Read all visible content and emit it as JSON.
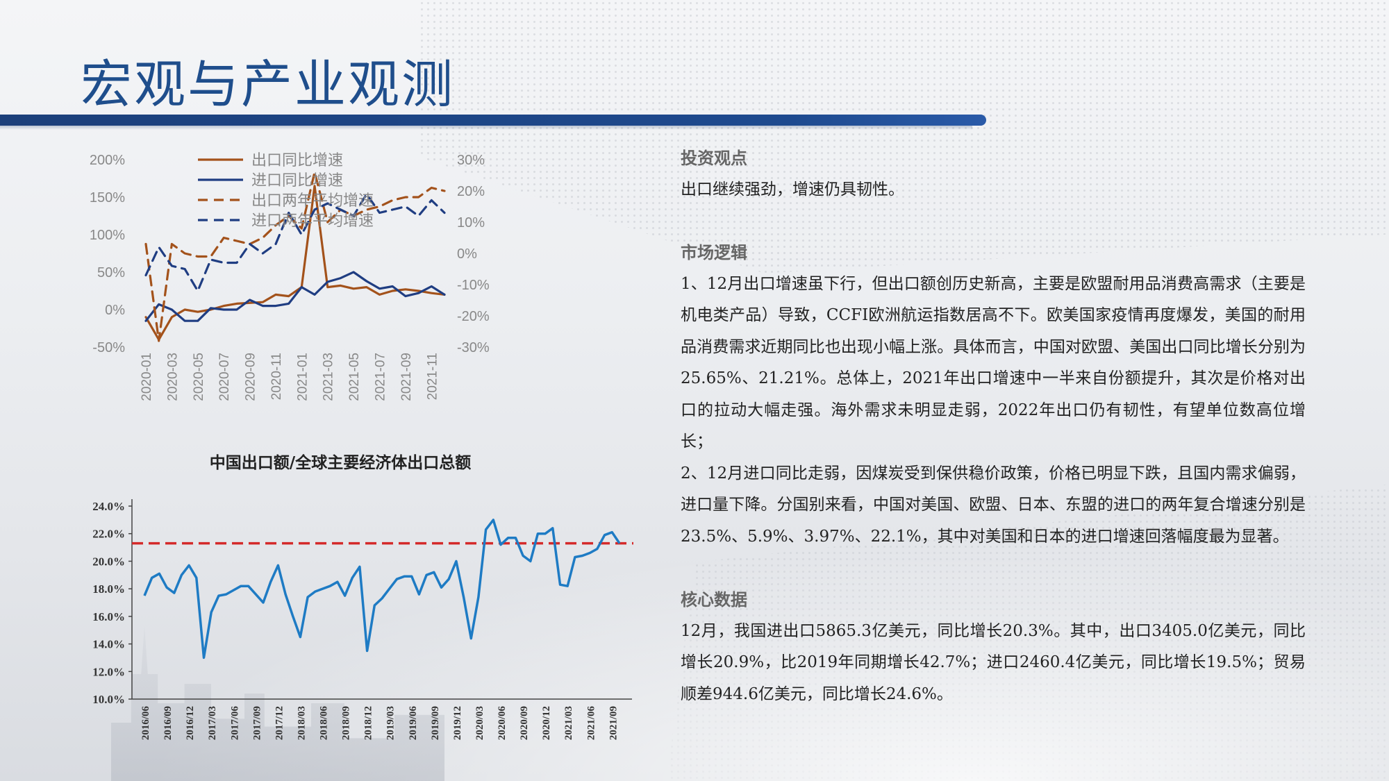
{
  "page": {
    "title": "宏观与产业观测"
  },
  "colors": {
    "title": "#1f4e8c",
    "bar": "#1c3f7a",
    "export": "#a3521b",
    "import": "#1f3d82",
    "share_line": "#1e7bc4",
    "share_ref": "#d42a2a"
  },
  "text_panel": {
    "sections": [
      {
        "heading": "投资观点",
        "paragraphs": [
          "出口继续强劲，增速仍具韧性。"
        ]
      },
      {
        "heading": "市场逻辑",
        "paragraphs": [
          "1、12月出口增速虽下行，但出口额创历史新高，主要是欧盟耐用品消费高需求（主要是机电类产品）导致，CCFI欧洲航运指数居高不下。欧美国家疫情再度爆发，美国的耐用品消费需求近期同比也出现小幅上涨。具体而言，中国对欧盟、美国出口同比增长分别为25.65%、21.21%。总体上，2021年出口增速中一半来自份额提升，其次是价格对出口的拉动大幅走强。海外需求未明显走弱，2022年出口仍有韧性，有望单位数高位增长；",
          "2、12月进口同比走弱，因煤炭受到保供稳价政策，价格已明显下跌，且国内需求偏弱，进口量下降。分国别来看，中国对美国、欧盟、日本、东盟的进口的两年复合增速分别是23.5%、5.9%、3.97%、22.1%，其中对美国和日本的进口增速回落幅度最为显著。"
        ]
      },
      {
        "heading": "核心数据",
        "paragraphs": [
          "12月，我国进出口5865.3亿美元，同比增长20.3%。其中，出口3405.0亿美元，同比增长20.9%，比2019年同期增长42.7%；进口2460.4亿美元，同比增长19.5%；贸易顺差944.6亿美元，同比增长24.6%。"
        ]
      }
    ]
  },
  "chart_data": [
    {
      "type": "line",
      "title": "",
      "x": [
        "2020-01",
        "2020-02",
        "2020-03",
        "2020-04",
        "2020-05",
        "2020-06",
        "2020-07",
        "2020-08",
        "2020-09",
        "2020-10",
        "2020-11",
        "2020-12",
        "2021-01",
        "2021-02",
        "2021-03",
        "2021-04",
        "2021-05",
        "2021-06",
        "2021-07",
        "2021-08",
        "2021-09",
        "2021-10",
        "2021-11",
        "2021-12"
      ],
      "xticks": [
        "2020-01",
        "2020-03",
        "2020-05",
        "2020-07",
        "2020-09",
        "2020-11",
        "2021-01",
        "2021-03",
        "2021-05",
        "2021-07",
        "2021-09",
        "2021-11"
      ],
      "y_left": {
        "ticks": [
          "200%",
          "150%",
          "100%",
          "50%",
          "0%",
          "-50%"
        ],
        "lim": [
          -50,
          200
        ]
      },
      "y_right": {
        "ticks": [
          "30%",
          "20%",
          "10%",
          "0%",
          "-10%",
          "-20%",
          "-30%"
        ],
        "lim": [
          -30,
          30
        ]
      },
      "legend_position": "top-left",
      "series": [
        {
          "name": "出口同比增速",
          "axis": "left",
          "style": "solid",
          "color": "#a3521b",
          "values": [
            -10,
            -40,
            -10,
            0,
            -3,
            0,
            5,
            8,
            9,
            10,
            20,
            18,
            30,
            165,
            30,
            32,
            28,
            30,
            20,
            25,
            27,
            25,
            22,
            20
          ]
        },
        {
          "name": "进口同比增速",
          "axis": "left",
          "style": "solid",
          "color": "#1f3d82",
          "values": [
            -15,
            7,
            0,
            -15,
            -15,
            2,
            0,
            0,
            13,
            5,
            5,
            8,
            30,
            20,
            37,
            42,
            50,
            38,
            28,
            31,
            18,
            22,
            31,
            20
          ]
        },
        {
          "name": "出口两年平均增速",
          "axis": "right",
          "style": "dashed",
          "color": "#a3521b",
          "values": [
            3,
            -28,
            3,
            0,
            -1,
            -1,
            5,
            4,
            3,
            5,
            9,
            12,
            8,
            26,
            10,
            14,
            12,
            14,
            15,
            17,
            18,
            18,
            21,
            20
          ]
        },
        {
          "name": "进口两年平均增速",
          "axis": "right",
          "style": "dashed",
          "color": "#1f3d82",
          "values": [
            -7,
            2,
            -4,
            -5,
            -12,
            -2,
            -3,
            -3,
            3,
            0,
            3,
            13,
            6,
            14,
            16,
            14,
            12,
            19,
            13,
            14,
            15,
            12,
            17,
            13
          ]
        }
      ]
    },
    {
      "type": "line",
      "title": "中国出口额/全球主要经济体出口总额",
      "x": [
        "2016/06",
        "2016/07",
        "2016/08",
        "2016/09",
        "2016/10",
        "2016/11",
        "2016/12",
        "2017/01",
        "2017/02",
        "2017/03",
        "2017/04",
        "2017/05",
        "2017/06",
        "2017/07",
        "2017/08",
        "2017/09",
        "2017/10",
        "2017/11",
        "2017/12",
        "2018/01",
        "2018/02",
        "2018/03",
        "2018/04",
        "2018/05",
        "2018/06",
        "2018/07",
        "2018/08",
        "2018/09",
        "2018/10",
        "2018/11",
        "2018/12",
        "2019/01",
        "2019/02",
        "2019/03",
        "2019/04",
        "2019/05",
        "2019/06",
        "2019/07",
        "2019/08",
        "2019/09",
        "2019/10",
        "2019/11",
        "2019/12",
        "2020/01",
        "2020/02",
        "2020/03",
        "2020/04",
        "2020/05",
        "2020/06",
        "2020/07",
        "2020/08",
        "2020/09",
        "2020/10",
        "2020/11",
        "2020/12",
        "2021/01",
        "2021/02",
        "2021/03",
        "2021/04",
        "2021/05",
        "2021/06",
        "2021/07",
        "2021/08",
        "2021/09",
        "2021/10"
      ],
      "xticks": [
        "2016/06",
        "2016/09",
        "2016/12",
        "2017/03",
        "2017/06",
        "2017/09",
        "2017/12",
        "2018/03",
        "2018/06",
        "2018/09",
        "2018/12",
        "2019/03",
        "2019/06",
        "2019/09",
        "2019/12",
        "2020/03",
        "2020/06",
        "2020/09",
        "2020/12",
        "2021/03",
        "2021/06",
        "2021/09"
      ],
      "y": {
        "ticks": [
          "24.0%",
          "22.0%",
          "20.0%",
          "18.0%",
          "16.0%",
          "14.0%",
          "12.0%",
          "10.0%"
        ],
        "lim": [
          10,
          24
        ]
      },
      "reference_line": {
        "value": 21.3,
        "style": "dashed",
        "color": "#d42a2a"
      },
      "series": [
        {
          "name": "",
          "color": "#1e7bc4",
          "values": [
            17.5,
            18.8,
            19.1,
            18.1,
            17.7,
            19.0,
            19.7,
            18.8,
            13.0,
            16.3,
            17.5,
            17.6,
            17.9,
            18.2,
            18.2,
            17.6,
            17.0,
            18.5,
            19.7,
            17.6,
            16.0,
            14.5,
            17.4,
            17.8,
            18.0,
            18.2,
            18.5,
            17.5,
            18.8,
            19.6,
            13.5,
            16.8,
            17.3,
            18.0,
            18.7,
            18.9,
            18.9,
            17.6,
            19.0,
            19.2,
            18.1,
            18.7,
            20.0,
            17.4,
            14.4,
            17.4,
            22.3,
            23.0,
            21.2,
            21.7,
            21.7,
            20.4,
            20.0,
            22.0,
            22.0,
            22.4,
            18.3,
            18.2,
            20.3,
            20.4,
            20.6,
            20.9,
            21.9,
            22.1,
            21.3
          ]
        }
      ]
    }
  ]
}
